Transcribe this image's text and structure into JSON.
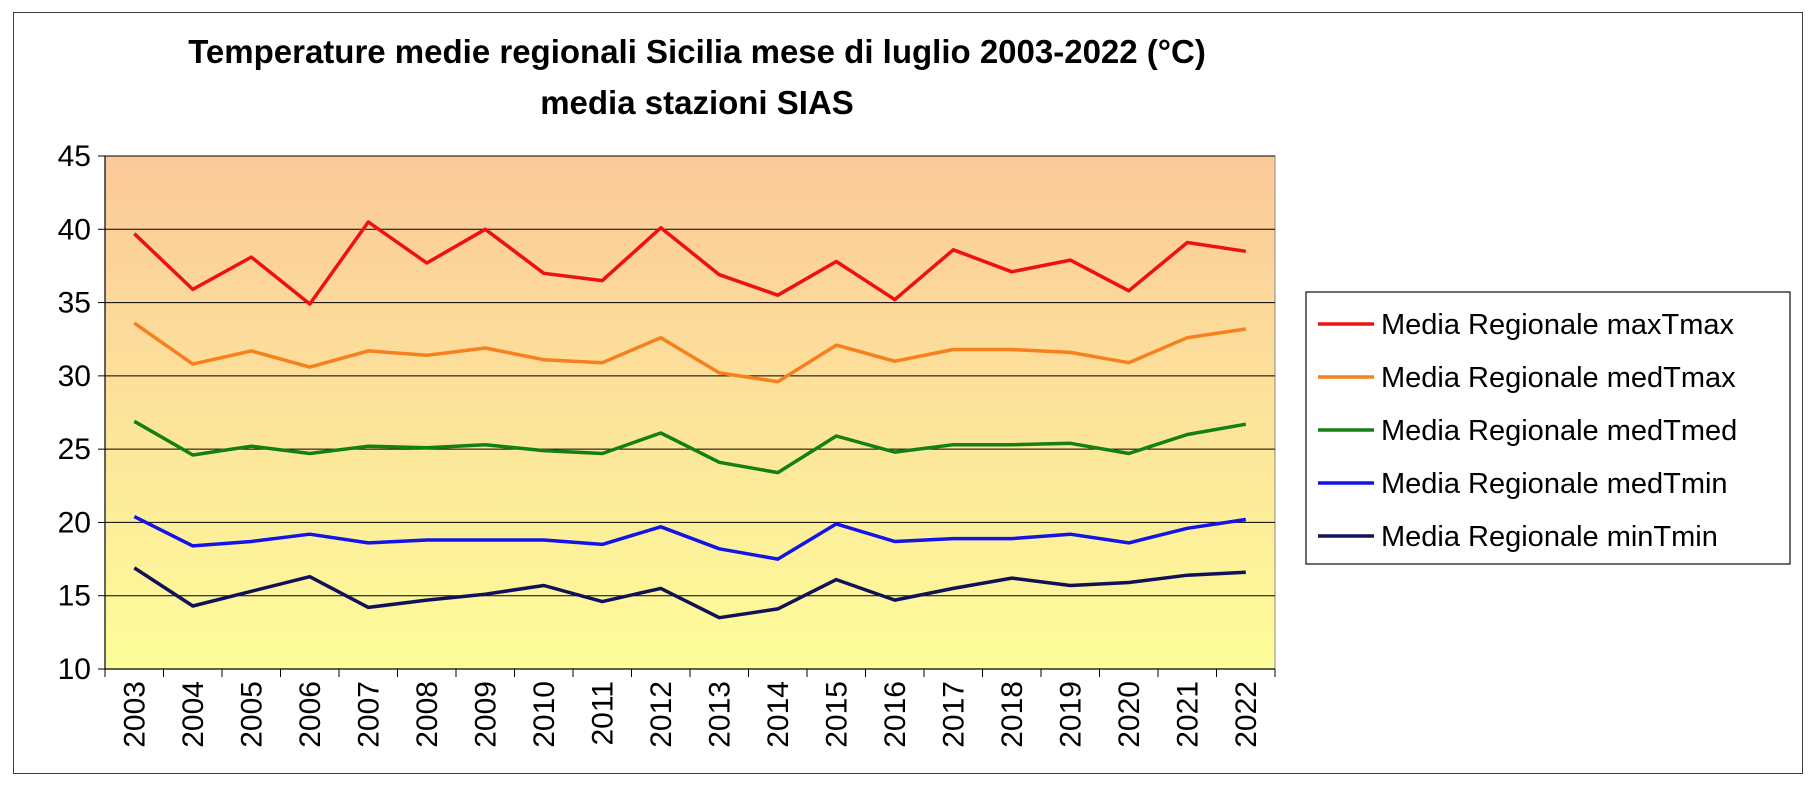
{
  "chart_data": {
    "type": "line",
    "title": "Temperature medie regionali Sicilia mese di luglio 2003-2022 (°C)",
    "subtitle": "media stazioni SIAS",
    "xlabel": "",
    "ylabel": "",
    "ylim": [
      10,
      45
    ],
    "yticks": [
      "10",
      "15",
      "20",
      "25",
      "30",
      "35",
      "40",
      "45"
    ],
    "categories": [
      "2003",
      "2004",
      "2005",
      "2006",
      "2007",
      "2008",
      "2009",
      "2010",
      "2011",
      "2012",
      "2013",
      "2014",
      "2015",
      "2016",
      "2017",
      "2018",
      "2019",
      "2020",
      "2021",
      "2022"
    ],
    "grid": true,
    "legend_position": "right",
    "background_gradient": [
      "#fcc99a",
      "#fdfd9a"
    ],
    "series": [
      {
        "name": "Media Regionale maxTmax",
        "color": "#ee1111",
        "values": [
          39.7,
          35.9,
          38.1,
          34.9,
          40.5,
          37.7,
          40.0,
          37.0,
          36.5,
          40.1,
          36.9,
          35.5,
          37.8,
          35.2,
          38.6,
          37.1,
          37.9,
          35.8,
          39.1,
          38.5
        ]
      },
      {
        "name": "Media Regionale medTmax",
        "color": "#f77f1d",
        "values": [
          33.6,
          30.8,
          31.7,
          30.6,
          31.7,
          31.4,
          31.9,
          31.1,
          30.9,
          32.6,
          30.2,
          29.6,
          32.1,
          31.0,
          31.8,
          31.8,
          31.6,
          30.9,
          32.6,
          33.2
        ]
      },
      {
        "name": "Media Regionale medTmed",
        "color": "#138013",
        "values": [
          26.9,
          24.6,
          25.2,
          24.7,
          25.2,
          25.1,
          25.3,
          24.9,
          24.7,
          26.1,
          24.1,
          23.4,
          25.9,
          24.8,
          25.3,
          25.3,
          25.4,
          24.7,
          26.0,
          26.7
        ]
      },
      {
        "name": "Media Regionale medTmin",
        "color": "#1414e6",
        "values": [
          20.4,
          18.4,
          18.7,
          19.2,
          18.6,
          18.8,
          18.8,
          18.8,
          18.5,
          19.7,
          18.2,
          17.5,
          19.9,
          18.7,
          18.9,
          18.9,
          19.2,
          18.6,
          19.6,
          20.2
        ]
      },
      {
        "name": "Media Regionale minTmin",
        "color": "#11115a",
        "values": [
          16.9,
          14.3,
          15.3,
          16.3,
          14.2,
          14.7,
          15.1,
          15.7,
          14.6,
          15.5,
          13.5,
          14.1,
          16.1,
          14.7,
          15.5,
          16.2,
          15.7,
          15.9,
          16.4,
          16.6
        ]
      }
    ]
  }
}
